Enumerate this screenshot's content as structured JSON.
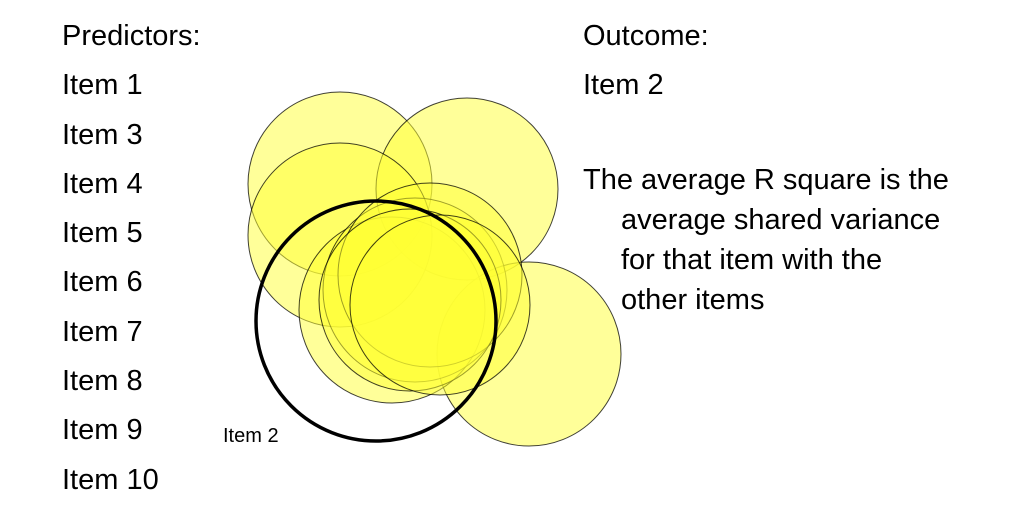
{
  "predictors": {
    "heading": "Predictors:",
    "items": [
      "Item 1",
      "Item 3",
      "Item 4",
      "Item 5",
      "Item 6",
      "Item 7",
      "Item 8",
      "Item 9",
      "Item 10"
    ]
  },
  "outcome": {
    "heading": "Outcome:",
    "item": "Item 2"
  },
  "note": {
    "line1": "The average R square is the",
    "line2": "average shared variance",
    "line3": "for that item with the",
    "line4": "other items"
  },
  "diagram": {
    "outcome_circle_label": "Item 2",
    "fill_color": "#ffff33",
    "fill_opacity": 0.5,
    "outline_color": "#000000"
  }
}
